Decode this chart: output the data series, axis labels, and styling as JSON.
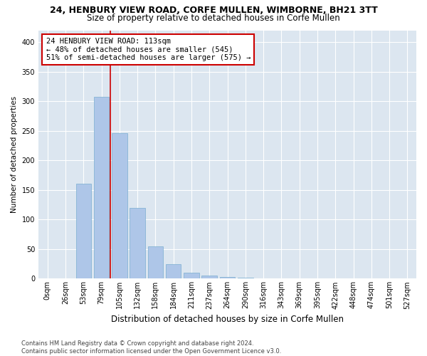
{
  "title_line1": "24, HENBURY VIEW ROAD, CORFE MULLEN, WIMBORNE, BH21 3TT",
  "title_line2": "Size of property relative to detached houses in Corfe Mullen",
  "xlabel": "Distribution of detached houses by size in Corfe Mullen",
  "ylabel": "Number of detached properties",
  "footnote": "Contains HM Land Registry data © Crown copyright and database right 2024.\nContains public sector information licensed under the Open Government Licence v3.0.",
  "bar_labels": [
    "0sqm",
    "26sqm",
    "53sqm",
    "79sqm",
    "105sqm",
    "132sqm",
    "158sqm",
    "184sqm",
    "211sqm",
    "237sqm",
    "264sqm",
    "290sqm",
    "316sqm",
    "343sqm",
    "369sqm",
    "395sqm",
    "422sqm",
    "448sqm",
    "474sqm",
    "501sqm",
    "527sqm"
  ],
  "bar_values": [
    0,
    0,
    160,
    308,
    246,
    120,
    55,
    25,
    10,
    5,
    3,
    2,
    1,
    1,
    0,
    0,
    0,
    0,
    0,
    0,
    0
  ],
  "bar_color": "#aec6e8",
  "bar_edge_color": "#7aaed0",
  "vline_x": 3.5,
  "vline_color": "#cc0000",
  "annotation_box_color": "#cc0000",
  "annotation_line1": "24 HENBURY VIEW ROAD: 113sqm",
  "annotation_line2": "← 48% of detached houses are smaller (545)",
  "annotation_line3": "51% of semi-detached houses are larger (575) →",
  "ylim": [
    0,
    420
  ],
  "yticks": [
    0,
    50,
    100,
    150,
    200,
    250,
    300,
    350,
    400
  ],
  "bg_color": "#dce6f0",
  "grid_color": "white",
  "title1_fontsize": 9,
  "title2_fontsize": 8.5,
  "xlabel_fontsize": 8.5,
  "ylabel_fontsize": 7.5,
  "tick_fontsize": 7,
  "footnote_fontsize": 6,
  "annot_fontsize": 7.5
}
